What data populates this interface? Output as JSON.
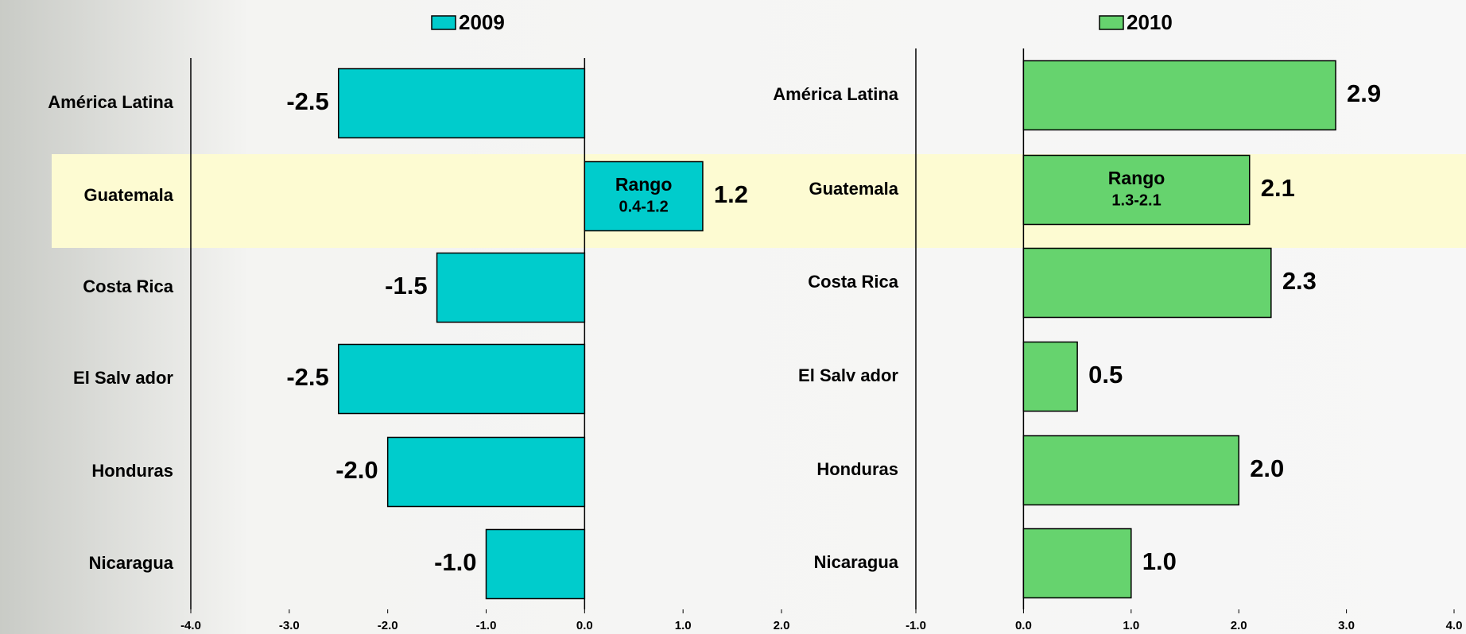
{
  "chart_data": [
    {
      "type": "bar",
      "orientation": "horizontal",
      "categories": [
        "América Latina",
        "Guatemala",
        "Costa Rica",
        "El Salv ador",
        "Honduras",
        "Nicaragua"
      ],
      "series": [
        {
          "name": "2009",
          "color": "#00cccc",
          "values": [
            -2.5,
            1.2,
            -1.5,
            -2.5,
            -2.0,
            -1.0
          ],
          "value_labels": [
            "-2.5",
            "1.2",
            "-1.5",
            "-2.5",
            "-2.0",
            "-1.0"
          ]
        }
      ],
      "annotation": [
        "Rango",
        "0.4-1.2"
      ],
      "xlim": [
        -4,
        2
      ],
      "xticks": [
        {
          "value": -4,
          "label": "-4.0"
        },
        {
          "value": -3,
          "label": "-3.0"
        },
        {
          "value": -2,
          "label": "-2.0"
        },
        {
          "value": -1,
          "label": "-1.0"
        },
        {
          "value": 0,
          "label": "0.0"
        },
        {
          "value": 1,
          "label": "1.0"
        },
        {
          "value": 2,
          "label": "2.0"
        }
      ]
    },
    {
      "type": "bar",
      "orientation": "horizontal",
      "categories": [
        "América Latina",
        "Guatemala",
        "Costa Rica",
        "El Salv ador",
        "Honduras",
        "Nicaragua"
      ],
      "series": [
        {
          "name": "2010",
          "color": "#66d36e",
          "values": [
            2.9,
            2.1,
            2.3,
            0.5,
            2.0,
            1.0
          ],
          "value_labels": [
            "2.9",
            "2.1",
            "2.3",
            "0.5",
            "2.0",
            "1.0"
          ]
        }
      ],
      "annotation": [
        "Rango",
        "1.3-2.1"
      ],
      "xlim": [
        -1,
        4
      ],
      "xticks": [
        {
          "value": -1,
          "label": "-1.0"
        },
        {
          "value": 0,
          "label": "0.0"
        },
        {
          "value": 1,
          "label": "1.0"
        },
        {
          "value": 2,
          "label": "2.0"
        },
        {
          "value": 3,
          "label": "3.0"
        },
        {
          "value": 4,
          "label": "4.0"
        }
      ]
    }
  ]
}
